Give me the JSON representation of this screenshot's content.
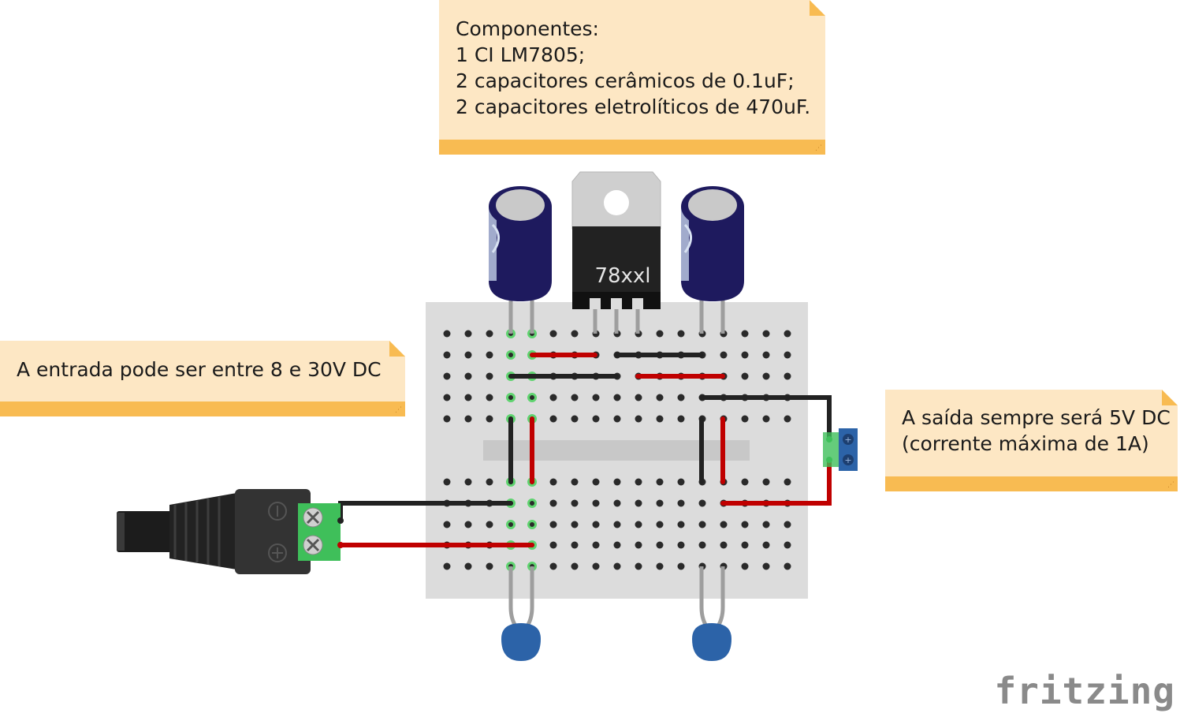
{
  "notes": {
    "components": {
      "title": "Componentes:",
      "lines": [
        "1 CI LM7805;",
        "2 capacitores cerâmicos de 0.1uF;",
        "2 capacitores eletrolíticos de 470uF."
      ]
    },
    "input": {
      "text": "A entrada pode ser entre 8 e 30V DC"
    },
    "output": {
      "lines": [
        "A saída sempre será 5V DC",
        "(corrente máxima de 1A)"
      ]
    }
  },
  "regulator": {
    "label": "78xxl"
  },
  "logo": {
    "text": "fritzing"
  },
  "colors": {
    "note_bg": "#fde7c4",
    "note_band": "#f8bb52",
    "breadboard": "#dcdcdc",
    "wire_red": "#c00000",
    "wire_black": "#222222",
    "capacitor_body": "#1e1a5e",
    "ceramic_cap": "#2c63a8",
    "terminal_green": "#3fbf5a"
  }
}
